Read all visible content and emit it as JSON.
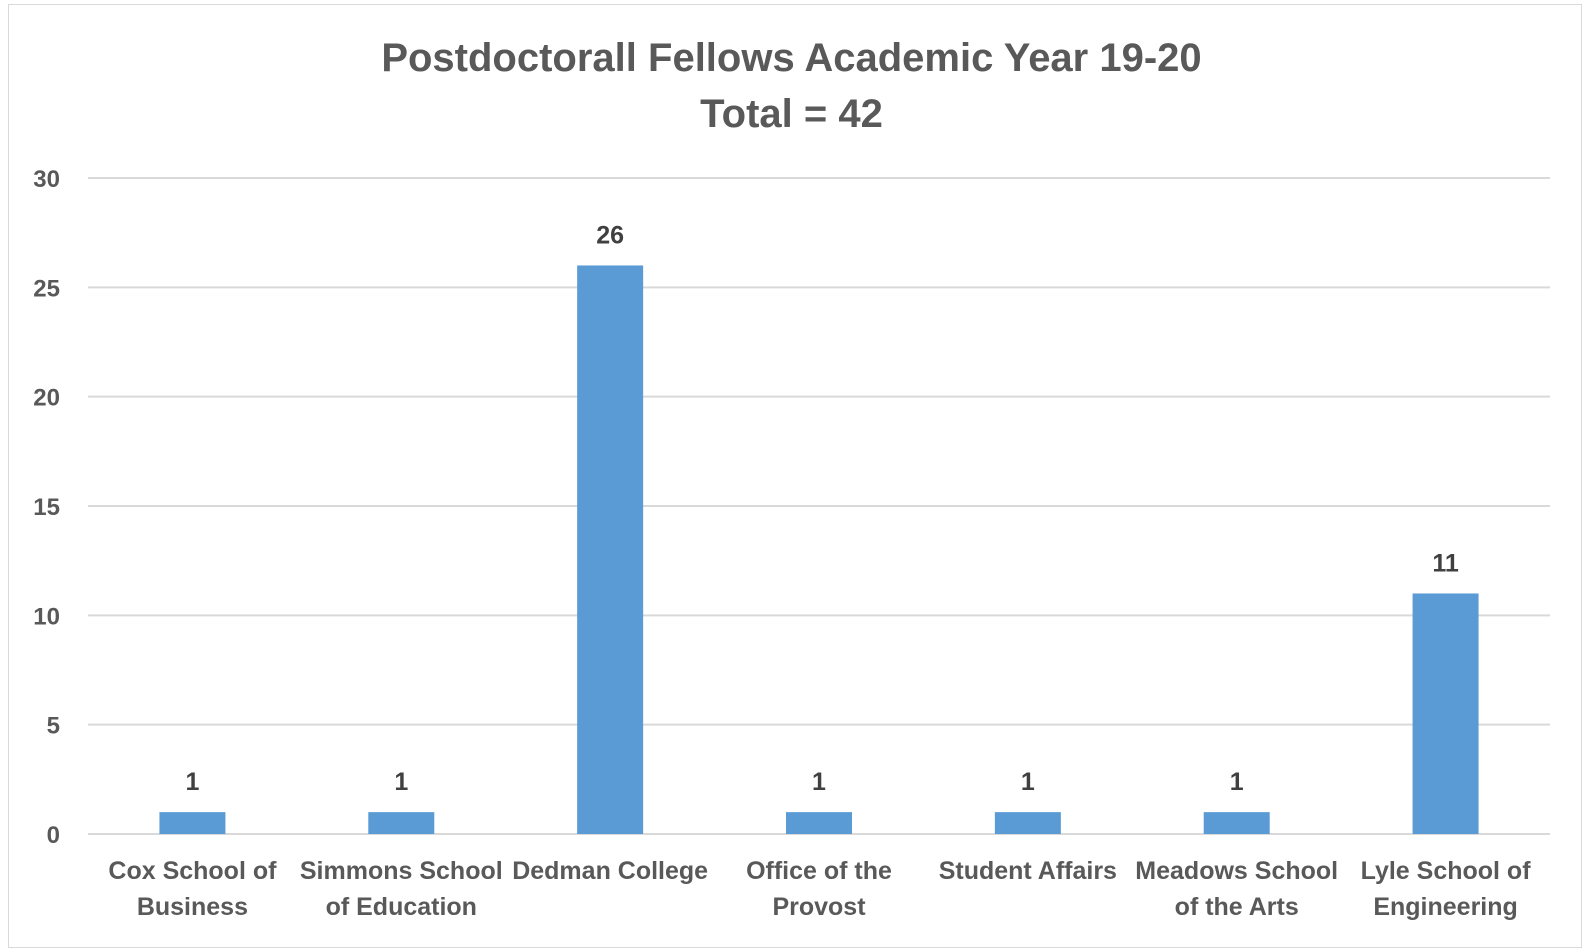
{
  "chart_data": {
    "type": "bar",
    "title": "Postdoctorall Fellows Academic Year 19-20",
    "subtitle": "Total = 42",
    "categories": [
      [
        "Cox School of",
        "Business"
      ],
      [
        "Simmons School",
        "of Education"
      ],
      [
        "Dedman College"
      ],
      [
        "Office of the",
        "Provost"
      ],
      [
        "Student Affairs"
      ],
      [
        "Meadows School",
        "of the Arts"
      ],
      [
        "Lyle School of",
        "Engineering"
      ]
    ],
    "values": [
      1,
      1,
      26,
      1,
      1,
      1,
      11
    ],
    "data_labels": [
      "1",
      "1",
      "26",
      "1",
      "1",
      "1",
      "11"
    ],
    "ylim": [
      0,
      30
    ],
    "yticks": [
      0,
      5,
      10,
      15,
      20,
      25,
      30
    ],
    "xlabel": "",
    "ylabel": "",
    "grid": true,
    "legend": "none",
    "colors": {
      "bar": "#5b9bd5",
      "gridline": "#d9d9d9",
      "text": "#595959",
      "data_label": "#404040"
    }
  }
}
